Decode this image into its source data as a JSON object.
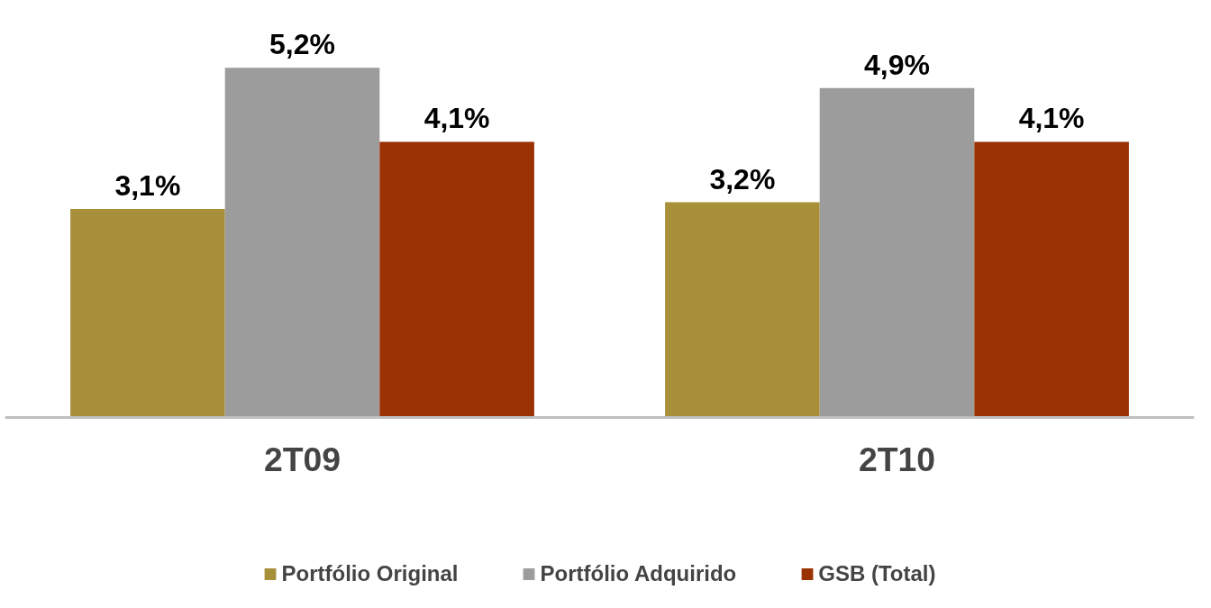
{
  "chart_data": {
    "type": "bar",
    "categories": [
      "2T09",
      "2T10"
    ],
    "series": [
      {
        "name": "Portfólio Original",
        "color": "#a88f3a",
        "values": [
          3.1,
          3.2
        ],
        "value_labels": [
          "3,1%",
          "3,2%"
        ]
      },
      {
        "name": "Portfólio Adquirido",
        "color": "#9c9c9c",
        "values": [
          5.2,
          4.9
        ],
        "value_labels": [
          "5,2%",
          "4,9%"
        ]
      },
      {
        "name": "GSB (Total)",
        "color": "#9a3204",
        "values": [
          4.1,
          4.1
        ],
        "value_labels": [
          "4,1%",
          "4,1%"
        ]
      }
    ],
    "legend": "bottom",
    "grid": false
  }
}
